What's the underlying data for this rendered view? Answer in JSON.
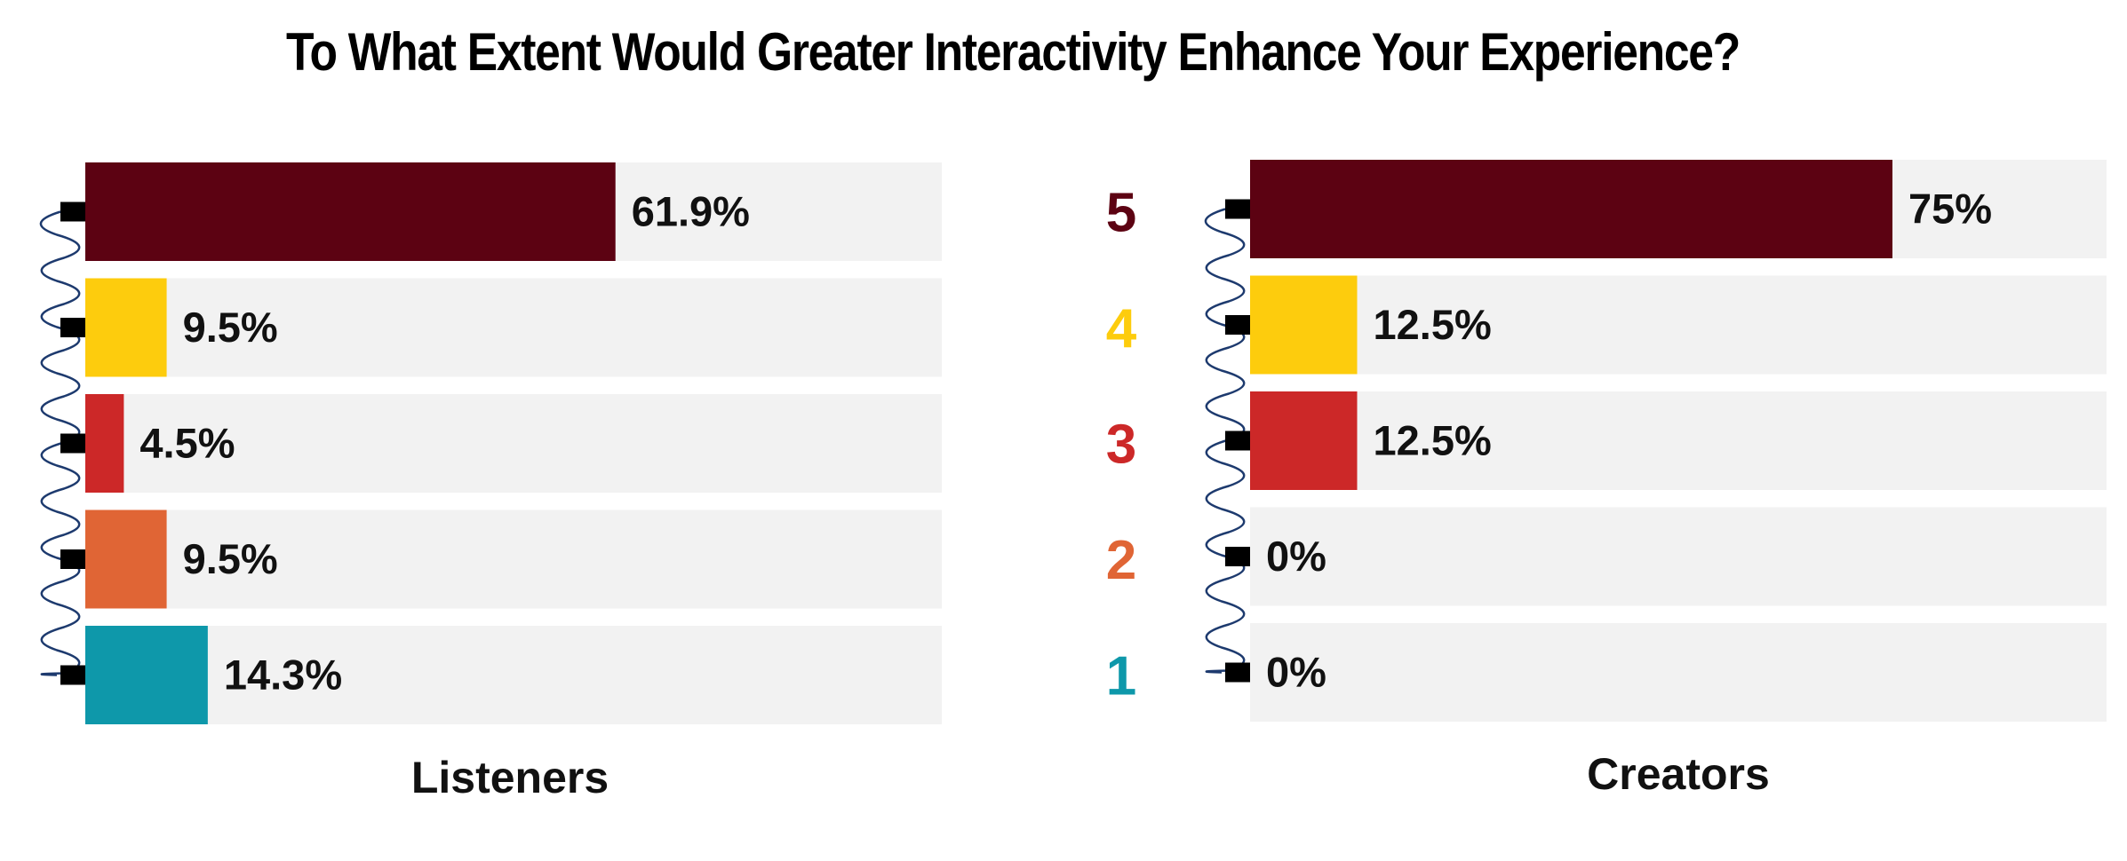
{
  "title": "To What Extent Would Greater Interactivity Enhance Your Experience?",
  "colors": {
    "5": "#5c0212",
    "4": "#fdcc0d",
    "3": "#cc2828",
    "2": "#e06535",
    "1": "#0e98aa",
    "track": "#f2f2f2",
    "cord": "#1d3a6e"
  },
  "chart_data": [
    {
      "type": "bar",
      "orientation": "horizontal",
      "xlabel": "Listeners",
      "categories": [
        "5",
        "4",
        "3",
        "2",
        "1"
      ],
      "values": [
        61.9,
        9.5,
        4.5,
        9.5,
        14.3
      ],
      "labels": [
        "61.9%",
        "9.5%",
        "4.5%",
        "9.5%",
        "14.3%"
      ],
      "xlim": [
        0,
        100
      ]
    },
    {
      "type": "bar",
      "orientation": "horizontal",
      "xlabel": "Creators",
      "categories": [
        "5",
        "4",
        "3",
        "2",
        "1"
      ],
      "values": [
        75,
        12.5,
        12.5,
        0,
        0
      ],
      "labels": [
        "75%",
        "12.5%",
        "12.5%",
        "0%",
        "0%"
      ],
      "xlim": [
        0,
        100
      ]
    }
  ]
}
